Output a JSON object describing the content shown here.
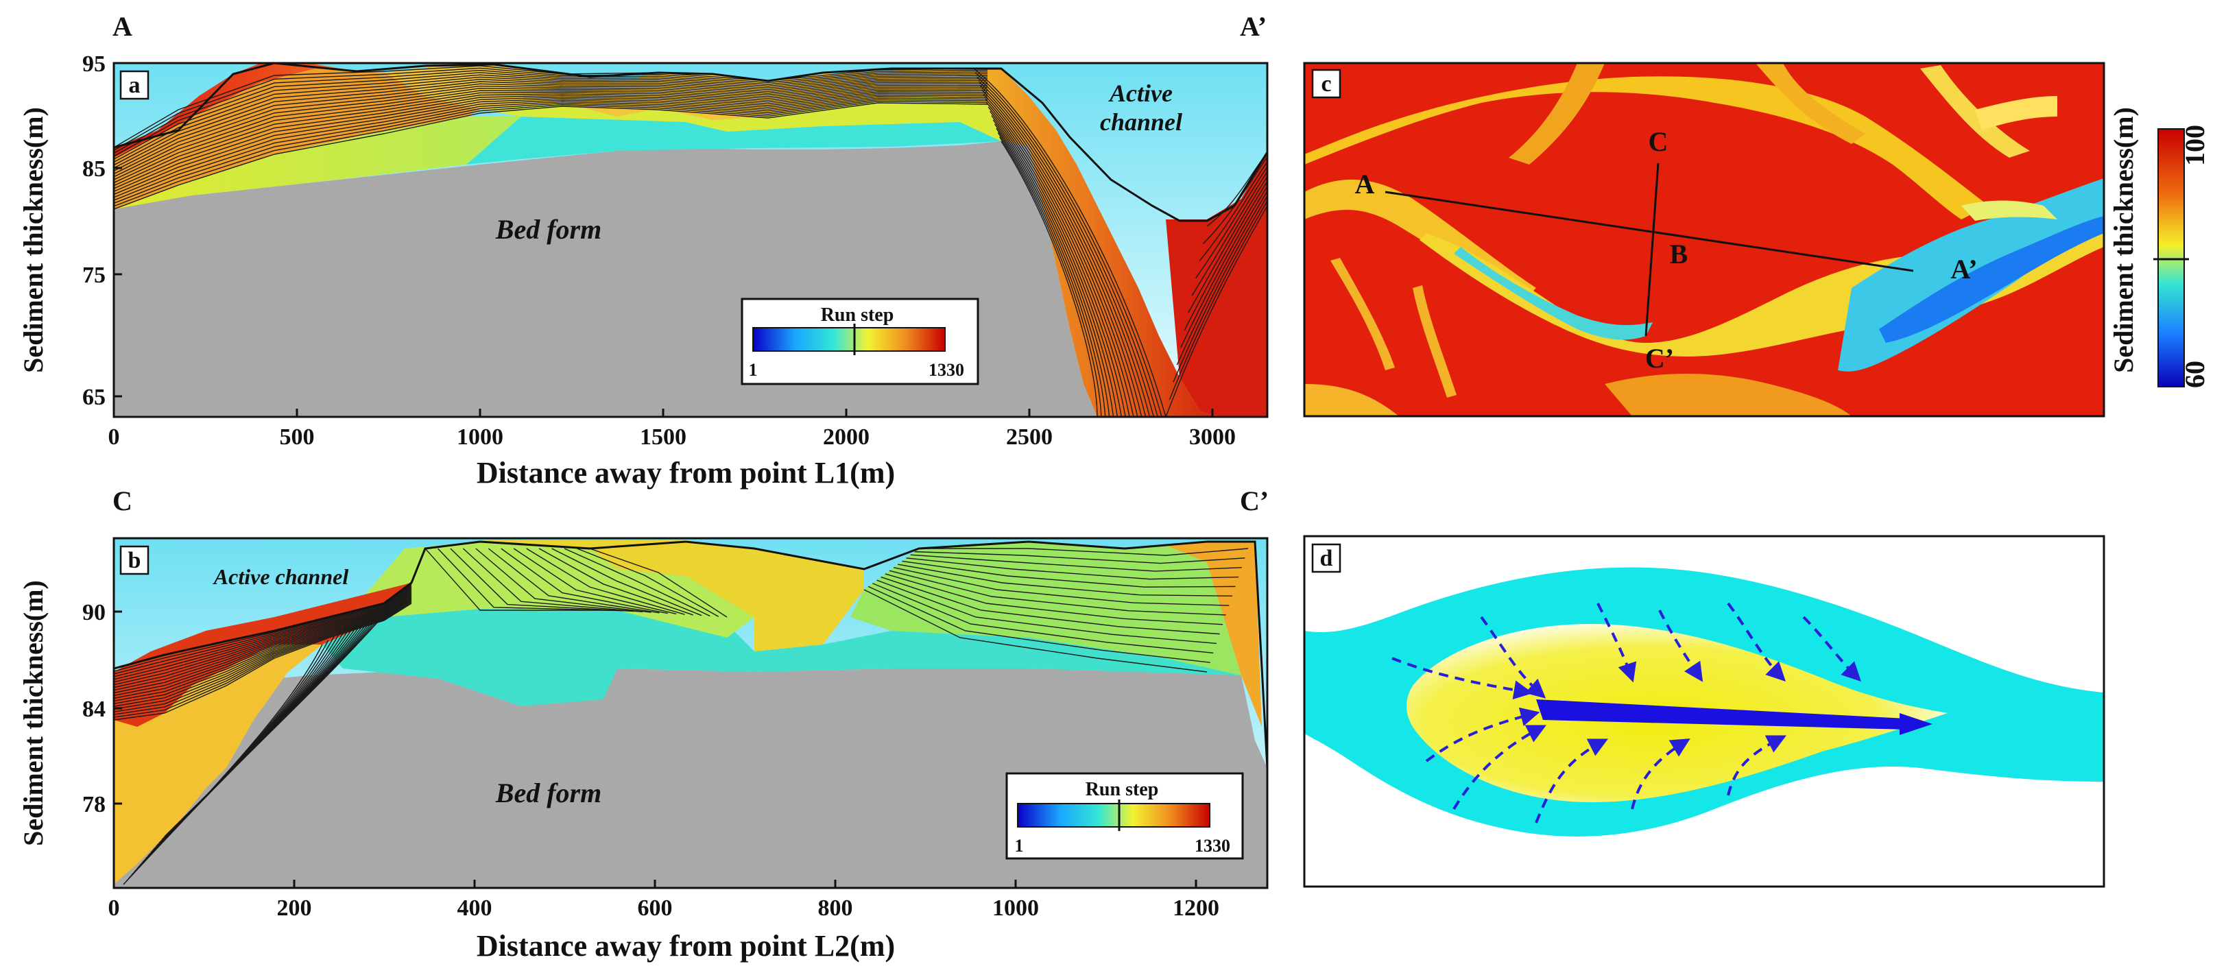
{
  "panels": {
    "a": {
      "badge": "a",
      "corner_left": "A",
      "corner_right": "A’",
      "ylabel": "Sediment thickness(m)",
      "xlabel": "Distance away from point L1(m)",
      "yticks": [
        "95",
        "85",
        "75",
        "65"
      ],
      "xticks": [
        "0",
        "500",
        "1000",
        "1500",
        "2000",
        "2500",
        "3000"
      ],
      "label_channel_1": "Active",
      "label_channel_2": "channel",
      "label_bed": "Bed form",
      "legend": {
        "title": "Run step",
        "min": "1",
        "max": "1330"
      }
    },
    "b": {
      "badge": "b",
      "corner_left": "C",
      "corner_right": "C’",
      "ylabel": "Sediment thickness(m)",
      "xlabel": "Distance away from point L2(m)",
      "yticks": [
        "90",
        "84",
        "78"
      ],
      "xticks": [
        "0",
        "200",
        "400",
        "600",
        "800",
        "1000",
        "1200"
      ],
      "label_channel": "Active channel",
      "label_bed": "Bed form",
      "legend": {
        "title": "Run step",
        "min": "1",
        "max": "1330"
      }
    },
    "c": {
      "badge": "c",
      "pt_A": "A",
      "pt_A2": "A’",
      "pt_B": "B",
      "pt_C": "C",
      "pt_C2": "C’",
      "colorbar_label": "Sediment thickness(m)",
      "colorbar_max": "100",
      "colorbar_min": "60"
    },
    "d": {
      "badge": "d"
    }
  }
}
